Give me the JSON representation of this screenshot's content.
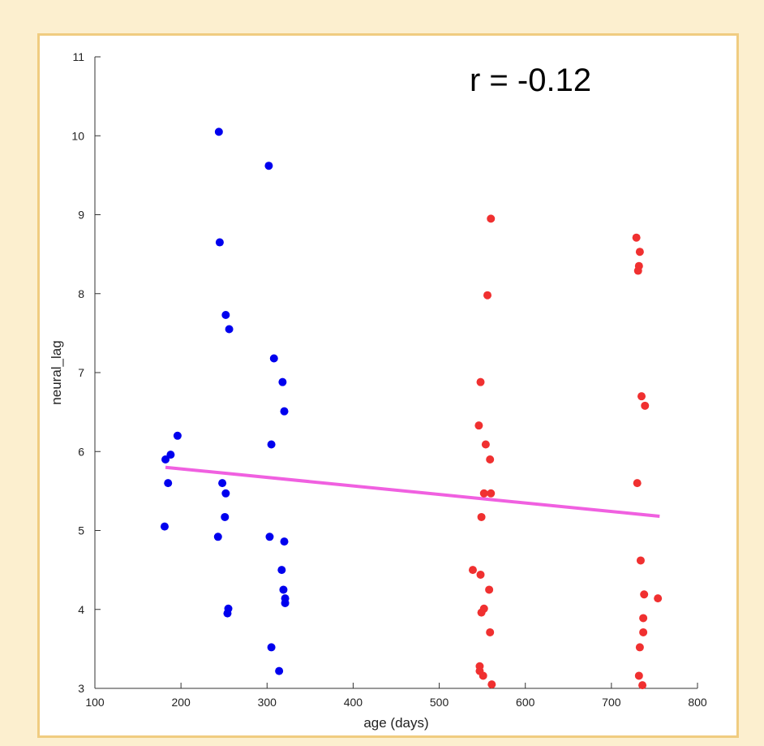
{
  "chart_data": {
    "type": "scatter",
    "xlabel": "age (days)",
    "ylabel": "neural_lag",
    "xlim": [
      100,
      800
    ],
    "ylim": [
      3,
      11
    ],
    "xticks": [
      100,
      200,
      300,
      400,
      500,
      600,
      700,
      800
    ],
    "yticks": [
      3,
      4,
      5,
      6,
      7,
      8,
      9,
      10,
      11
    ],
    "grid": false,
    "annotation": "r = -0.12",
    "colors": {
      "young": "#0000ee",
      "old": "#f03030",
      "fit": "#f060e0",
      "axis": "#333333"
    },
    "series": [
      {
        "color": "#0000ee",
        "points": [
          [
            181,
            5.05
          ],
          [
            182,
            5.9
          ],
          [
            185,
            5.6
          ],
          [
            188,
            5.96
          ],
          [
            196,
            6.2
          ],
          [
            243,
            4.92
          ],
          [
            244,
            10.05
          ],
          [
            245,
            8.65
          ],
          [
            248,
            5.6
          ],
          [
            251,
            5.17
          ],
          [
            252,
            5.47
          ],
          [
            252,
            7.73
          ],
          [
            254,
            3.95
          ],
          [
            255,
            4.01
          ],
          [
            256,
            7.55
          ],
          [
            302,
            9.62
          ],
          [
            303,
            4.92
          ],
          [
            305,
            3.52
          ],
          [
            305,
            6.09
          ],
          [
            308,
            7.18
          ],
          [
            314,
            3.22
          ],
          [
            317,
            4.5
          ],
          [
            318,
            6.88
          ],
          [
            319,
            4.25
          ],
          [
            320,
            6.51
          ],
          [
            320,
            4.86
          ],
          [
            321,
            4.08
          ],
          [
            321,
            4.14
          ]
        ]
      },
      {
        "color": "#f03030",
        "points": [
          [
            539,
            4.5
          ],
          [
            546,
            6.33
          ],
          [
            547,
            3.28
          ],
          [
            547,
            3.22
          ],
          [
            548,
            4.44
          ],
          [
            548,
            6.88
          ],
          [
            549,
            5.17
          ],
          [
            549,
            3.96
          ],
          [
            551,
            3.16
          ],
          [
            552,
            4.01
          ],
          [
            552,
            5.47
          ],
          [
            554,
            6.09
          ],
          [
            556,
            7.98
          ],
          [
            558,
            4.25
          ],
          [
            559,
            5.9
          ],
          [
            559,
            3.71
          ],
          [
            560,
            5.47
          ],
          [
            560,
            8.95
          ],
          [
            561,
            3.05
          ],
          [
            729,
            8.71
          ],
          [
            730,
            5.6
          ],
          [
            731,
            8.29
          ],
          [
            732,
            8.35
          ],
          [
            732,
            3.16
          ],
          [
            733,
            8.53
          ],
          [
            733,
            3.52
          ],
          [
            734,
            4.62
          ],
          [
            735,
            6.7
          ],
          [
            736,
            3.04
          ],
          [
            737,
            3.89
          ],
          [
            737,
            3.71
          ],
          [
            738,
            4.19
          ],
          [
            739,
            6.58
          ],
          [
            754,
            4.14
          ]
        ]
      }
    ],
    "fit_line": {
      "x": [
        182,
        756
      ],
      "y": [
        5.8,
        5.18
      ]
    }
  }
}
